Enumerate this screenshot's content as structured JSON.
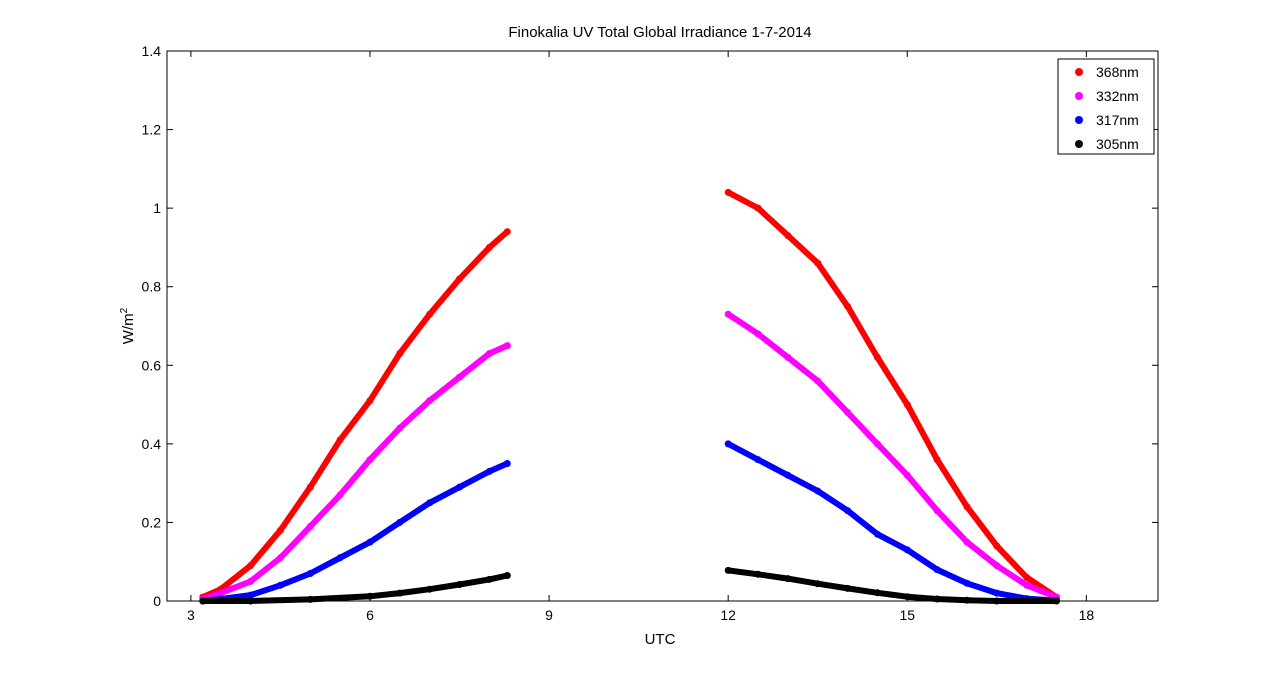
{
  "chart_data": {
    "type": "scatter",
    "title": "Finokalia UV Total Global Irradiance 1-7-2014",
    "xlabel": "UTC",
    "ylabel": "W/m",
    "ylabel_sup": "2",
    "xlim": [
      2.6,
      19.2
    ],
    "ylim": [
      0,
      1.4
    ],
    "xticks": [
      3,
      6,
      9,
      12,
      15,
      18
    ],
    "yticks": [
      0,
      0.2,
      0.4,
      0.6,
      0.8,
      1,
      1.2,
      1.4
    ],
    "ytick_labels": [
      "0",
      "0.2",
      "0.4",
      "0.6",
      "0.8",
      "1",
      "1.2",
      "1.4"
    ],
    "legend_position": "top-right",
    "series": [
      {
        "name": "368nm",
        "color": "#ff0000",
        "morning": [
          [
            3.2,
            0.01
          ],
          [
            3.5,
            0.03
          ],
          [
            4.0,
            0.09
          ],
          [
            4.5,
            0.18
          ],
          [
            5.0,
            0.29
          ],
          [
            5.5,
            0.41
          ],
          [
            6.0,
            0.51
          ],
          [
            6.5,
            0.63
          ],
          [
            7.0,
            0.73
          ],
          [
            7.5,
            0.82
          ],
          [
            8.0,
            0.9
          ],
          [
            8.3,
            0.94
          ]
        ],
        "afternoon": [
          [
            12.0,
            1.04
          ],
          [
            12.5,
            1.0
          ],
          [
            13.0,
            0.93
          ],
          [
            13.5,
            0.86
          ],
          [
            14.0,
            0.75
          ],
          [
            14.5,
            0.62
          ],
          [
            15.0,
            0.5
          ],
          [
            15.5,
            0.36
          ],
          [
            16.0,
            0.24
          ],
          [
            16.5,
            0.14
          ],
          [
            17.0,
            0.06
          ],
          [
            17.5,
            0.01
          ]
        ]
      },
      {
        "name": "332nm",
        "color": "#ff00ff",
        "morning": [
          [
            3.2,
            0.005
          ],
          [
            3.5,
            0.02
          ],
          [
            4.0,
            0.05
          ],
          [
            4.5,
            0.11
          ],
          [
            5.0,
            0.19
          ],
          [
            5.5,
            0.27
          ],
          [
            6.0,
            0.36
          ],
          [
            6.5,
            0.44
          ],
          [
            7.0,
            0.51
          ],
          [
            7.5,
            0.57
          ],
          [
            8.0,
            0.63
          ],
          [
            8.3,
            0.65
          ]
        ],
        "afternoon": [
          [
            12.0,
            0.73
          ],
          [
            12.5,
            0.68
          ],
          [
            13.0,
            0.62
          ],
          [
            13.5,
            0.56
          ],
          [
            14.0,
            0.48
          ],
          [
            14.5,
            0.4
          ],
          [
            15.0,
            0.32
          ],
          [
            15.5,
            0.23
          ],
          [
            16.0,
            0.15
          ],
          [
            16.5,
            0.09
          ],
          [
            17.0,
            0.04
          ],
          [
            17.5,
            0.01
          ]
        ]
      },
      {
        "name": "317nm",
        "color": "#0000ff",
        "morning": [
          [
            3.2,
            0.0
          ],
          [
            3.5,
            0.005
          ],
          [
            4.0,
            0.015
          ],
          [
            4.5,
            0.04
          ],
          [
            5.0,
            0.07
          ],
          [
            5.5,
            0.11
          ],
          [
            6.0,
            0.15
          ],
          [
            6.5,
            0.2
          ],
          [
            7.0,
            0.25
          ],
          [
            7.5,
            0.29
          ],
          [
            8.0,
            0.33
          ],
          [
            8.3,
            0.35
          ]
        ],
        "afternoon": [
          [
            12.0,
            0.4
          ],
          [
            12.5,
            0.36
          ],
          [
            13.0,
            0.32
          ],
          [
            13.5,
            0.28
          ],
          [
            14.0,
            0.23
          ],
          [
            14.5,
            0.17
          ],
          [
            15.0,
            0.13
          ],
          [
            15.5,
            0.08
          ],
          [
            16.0,
            0.045
          ],
          [
            16.5,
            0.02
          ],
          [
            17.0,
            0.006
          ],
          [
            17.5,
            0.001
          ]
        ]
      },
      {
        "name": "305nm",
        "color": "#000000",
        "morning": [
          [
            3.2,
            0.0
          ],
          [
            4.0,
            0.0
          ],
          [
            5.0,
            0.004
          ],
          [
            6.0,
            0.012
          ],
          [
            6.5,
            0.02
          ],
          [
            7.0,
            0.03
          ],
          [
            7.5,
            0.042
          ],
          [
            8.0,
            0.055
          ],
          [
            8.3,
            0.065
          ]
        ],
        "afternoon": [
          [
            12.0,
            0.078
          ],
          [
            12.5,
            0.068
          ],
          [
            13.0,
            0.057
          ],
          [
            13.5,
            0.044
          ],
          [
            14.0,
            0.032
          ],
          [
            14.5,
            0.021
          ],
          [
            15.0,
            0.011
          ],
          [
            15.5,
            0.005
          ],
          [
            16.0,
            0.002
          ],
          [
            16.5,
            0.0
          ],
          [
            17.5,
            0.0
          ]
        ]
      }
    ]
  }
}
